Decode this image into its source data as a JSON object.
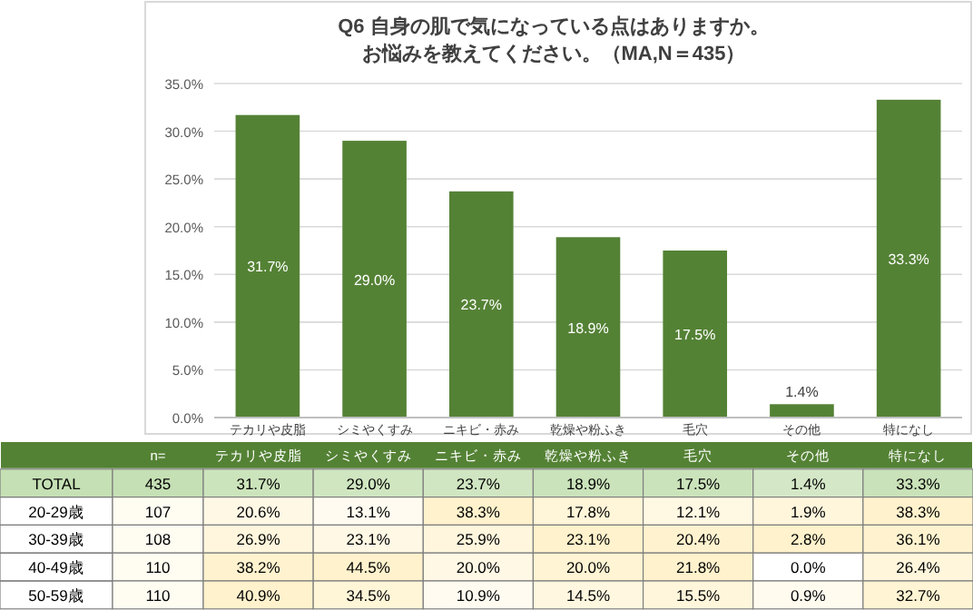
{
  "chart_data": [
    {
      "type": "bar",
      "title": "Q6 自身の肌で気になっている点はありますか。",
      "subtitle": "お悩みを教えてください。（MA,N＝435）",
      "categories": [
        "テカリや皮脂",
        "シミやくすみ",
        "ニキビ・赤み",
        "乾燥や粉ふき",
        "毛穴",
        "その他",
        "特になし"
      ],
      "values": [
        31.7,
        29.0,
        23.7,
        18.9,
        17.5,
        1.4,
        33.3
      ],
      "value_labels": [
        "31.7%",
        "29.0%",
        "23.7%",
        "18.9%",
        "17.5%",
        "1.4%",
        "33.3%"
      ],
      "color": "#548235",
      "ylim": [
        0,
        35
      ],
      "yticks": [
        {
          "value": 0,
          "label": "0.0%"
        },
        {
          "value": 5,
          "label": "5.0%"
        },
        {
          "value": 10,
          "label": "10.0%"
        },
        {
          "value": 15,
          "label": "15.0%"
        },
        {
          "value": 20,
          "label": "20.0%"
        },
        {
          "value": 25,
          "label": "25.0%"
        },
        {
          "value": 30,
          "label": "30.0%"
        },
        {
          "value": 35,
          "label": "35.0%"
        }
      ],
      "grid": "y"
    },
    {
      "type": "heatmap",
      "categories": [
        "n=",
        "テカリや皮脂",
        "シミやくすみ",
        "ニキビ・赤み",
        "乾燥や粉ふき",
        "毛穴",
        "その他",
        "特になし"
      ],
      "y_categories": [
        "TOTAL",
        "20-29歳",
        "30-39歳",
        "40-49歳",
        "50-59歳"
      ],
      "cells": [
        [
          435,
          31.7,
          29.0,
          23.7,
          18.9,
          17.5,
          1.4,
          33.3
        ],
        [
          107,
          20.6,
          13.1,
          38.3,
          17.8,
          12.1,
          1.9,
          38.3
        ],
        [
          108,
          26.9,
          23.1,
          25.9,
          23.1,
          20.4,
          2.8,
          36.1
        ],
        [
          110,
          38.2,
          44.5,
          20.0,
          20.0,
          21.8,
          0.0,
          26.4
        ],
        [
          110,
          40.9,
          34.5,
          10.9,
          14.5,
          15.5,
          0.9,
          32.7
        ]
      ],
      "cell_labels": [
        [
          "435",
          "31.7%",
          "29.0%",
          "23.7%",
          "18.9%",
          "17.5%",
          "1.4%",
          "33.3%"
        ],
        [
          "107",
          "20.6%",
          "13.1%",
          "38.3%",
          "17.8%",
          "12.1%",
          "1.9%",
          "38.3%"
        ],
        [
          "108",
          "26.9%",
          "23.1%",
          "25.9%",
          "23.1%",
          "20.4%",
          "2.8%",
          "36.1%"
        ],
        [
          "110",
          "38.2%",
          "44.5%",
          "20.0%",
          "20.0%",
          "21.8%",
          "0.0%",
          "26.4%"
        ],
        [
          "110",
          "40.9%",
          "34.5%",
          "10.9%",
          "14.5%",
          "15.5%",
          "0.9%",
          "32.7%"
        ]
      ]
    }
  ]
}
